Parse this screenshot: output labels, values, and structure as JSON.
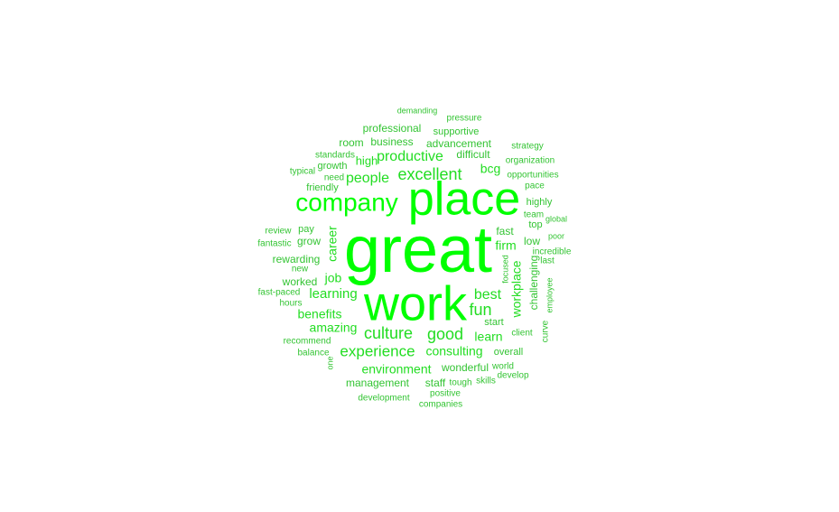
{
  "colors": {
    "high": "#00ff00",
    "mid": "#22dd22",
    "low": "#33c433",
    "background": "#ffffff"
  },
  "words": [
    {
      "text": "great",
      "weight": 1.0
    },
    {
      "text": "work",
      "weight": 0.78
    },
    {
      "text": "place",
      "weight": 0.72
    },
    {
      "text": "company",
      "weight": 0.48
    },
    {
      "text": "excellent",
      "weight": 0.26
    },
    {
      "text": "productive",
      "weight": 0.22
    },
    {
      "text": "people",
      "weight": 0.22
    },
    {
      "text": "culture",
      "weight": 0.26
    },
    {
      "text": "good",
      "weight": 0.26
    },
    {
      "text": "experience",
      "weight": 0.24
    },
    {
      "text": "learning",
      "weight": 0.2
    },
    {
      "text": "benefits",
      "weight": 0.18
    },
    {
      "text": "amazing",
      "weight": 0.18
    },
    {
      "text": "environment",
      "weight": 0.18
    },
    {
      "text": "consulting",
      "weight": 0.18
    },
    {
      "text": "best",
      "weight": 0.22
    },
    {
      "text": "fun",
      "weight": 0.24
    },
    {
      "text": "learn",
      "weight": 0.18
    },
    {
      "text": "workplace",
      "weight": 0.18
    },
    {
      "text": "career",
      "weight": 0.16
    },
    {
      "text": "bcg",
      "weight": 0.18
    },
    {
      "text": "firm",
      "weight": 0.16
    },
    {
      "text": "job",
      "weight": 0.18
    },
    {
      "text": "high",
      "weight": 0.16
    },
    {
      "text": "professional",
      "weight": 0.12
    },
    {
      "text": "business",
      "weight": 0.12
    },
    {
      "text": "room",
      "weight": 0.12
    },
    {
      "text": "supportive",
      "weight": 0.12
    },
    {
      "text": "advancement",
      "weight": 0.12
    },
    {
      "text": "difficult",
      "weight": 0.12
    },
    {
      "text": "wonderful",
      "weight": 0.14
    },
    {
      "text": "management",
      "weight": 0.13
    },
    {
      "text": "staff",
      "weight": 0.13
    },
    {
      "text": "grow",
      "weight": 0.13
    },
    {
      "text": "rewarding",
      "weight": 0.12
    },
    {
      "text": "worked",
      "weight": 0.12
    },
    {
      "text": "challenging",
      "weight": 0.12
    },
    {
      "text": "demanding",
      "weight": 0.09
    },
    {
      "text": "pressure",
      "weight": 0.09
    },
    {
      "text": "strategy",
      "weight": 0.09
    },
    {
      "text": "organization",
      "weight": 0.09
    },
    {
      "text": "opportunities",
      "weight": 0.09
    },
    {
      "text": "pace",
      "weight": 0.09
    },
    {
      "text": "highly",
      "weight": 0.1
    },
    {
      "text": "team",
      "weight": 0.09
    },
    {
      "text": "global",
      "weight": 0.09
    },
    {
      "text": "top",
      "weight": 0.1
    },
    {
      "text": "fast",
      "weight": 0.11
    },
    {
      "text": "low",
      "weight": 0.1
    },
    {
      "text": "poor",
      "weight": 0.09
    },
    {
      "text": "incredible",
      "weight": 0.09
    },
    {
      "text": "last",
      "weight": 0.09
    },
    {
      "text": "focused",
      "weight": 0.08
    },
    {
      "text": "employee",
      "weight": 0.08
    },
    {
      "text": "start",
      "weight": 0.1
    },
    {
      "text": "client",
      "weight": 0.09
    },
    {
      "text": "curve",
      "weight": 0.09
    },
    {
      "text": "overall",
      "weight": 0.1
    },
    {
      "text": "world",
      "weight": 0.09
    },
    {
      "text": "develop",
      "weight": 0.09
    },
    {
      "text": "tough",
      "weight": 0.09
    },
    {
      "text": "skills",
      "weight": 0.09
    },
    {
      "text": "positive",
      "weight": 0.09
    },
    {
      "text": "companies",
      "weight": 0.09
    },
    {
      "text": "development",
      "weight": 0.09
    },
    {
      "text": "one",
      "weight": 0.08
    },
    {
      "text": "balance",
      "weight": 0.09
    },
    {
      "text": "recommend",
      "weight": 0.09
    },
    {
      "text": "hours",
      "weight": 0.09
    },
    {
      "text": "fast-paced",
      "weight": 0.09
    },
    {
      "text": "new",
      "weight": 0.09
    },
    {
      "text": "fantastic",
      "weight": 0.09
    },
    {
      "text": "review",
      "weight": 0.09
    },
    {
      "text": "pay",
      "weight": 0.1
    },
    {
      "text": "friendly",
      "weight": 0.1
    },
    {
      "text": "typical",
      "weight": 0.09
    },
    {
      "text": "need",
      "weight": 0.09
    },
    {
      "text": "growth",
      "weight": 0.09
    },
    {
      "text": "standards",
      "weight": 0.09
    }
  ]
}
